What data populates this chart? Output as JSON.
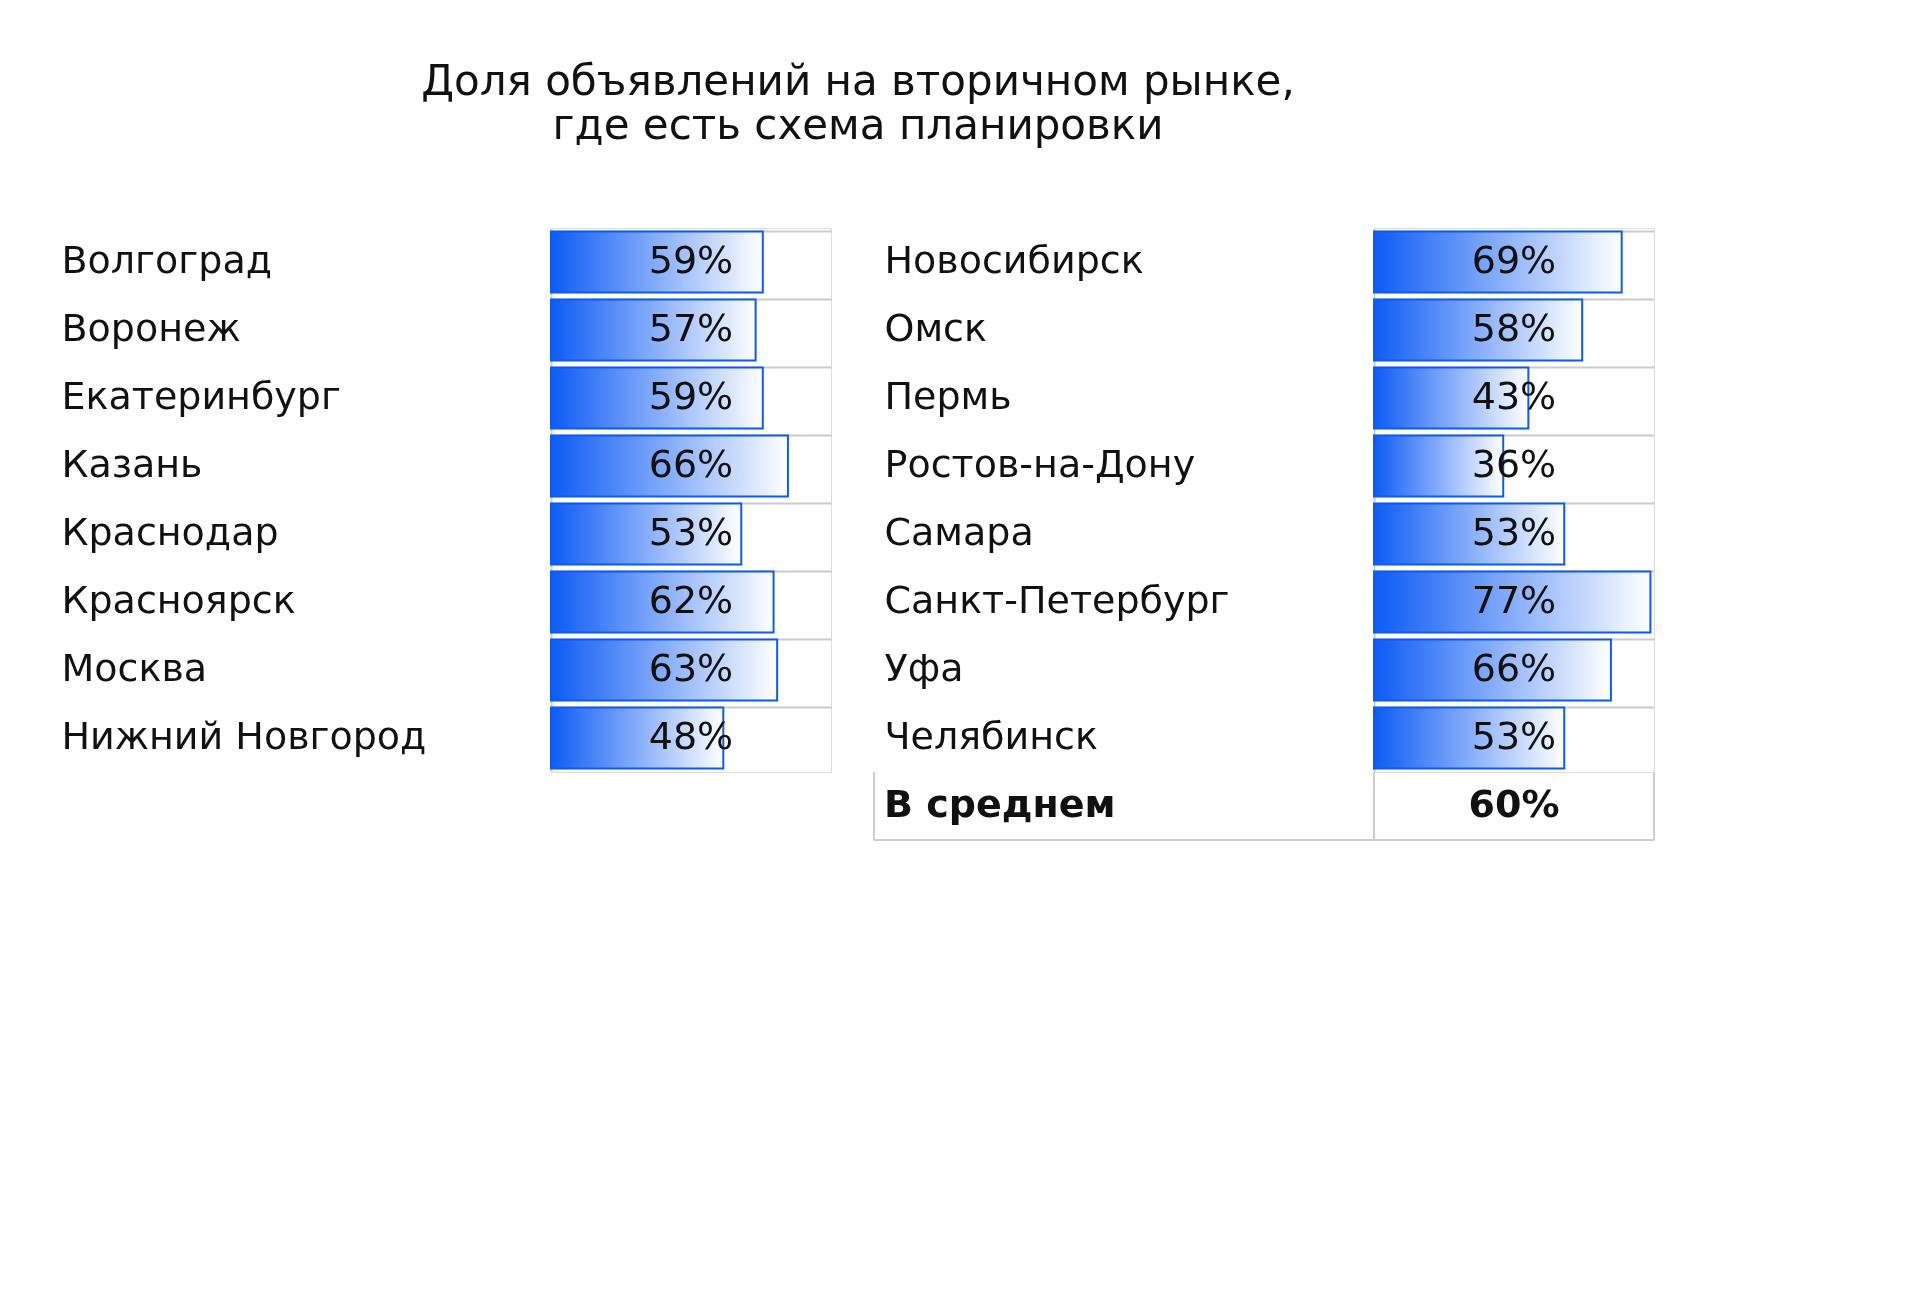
{
  "chart_data": [
    {
      "type": "bar",
      "orientation": "horizontal",
      "title": "Доля объявлений на вторичном рынке,\nгде есть схема планировки",
      "categories": [
        "Волгоград",
        "Воронеж",
        "Екатеринбург",
        "Казань",
        "Краснодар",
        "Красноярск",
        "Москва",
        "Нижний Новгород"
      ],
      "values": [
        59,
        57,
        59,
        66,
        53,
        62,
        63,
        48
      ],
      "value_labels": [
        "59%",
        "57%",
        "59%",
        "66%",
        "53%",
        "62%",
        "63%",
        "48%"
      ],
      "color": "#0d5bf5",
      "xlim": [
        0,
        78
      ],
      "tick_labels": "y",
      "grid": "y"
    },
    {
      "type": "bar",
      "orientation": "horizontal",
      "categories": [
        "Новосибирск",
        "Омск",
        "Пермь",
        "Ростов-на-Дону",
        "Самара",
        "Санкт-Петербург",
        "Уфа",
        "Челябинск"
      ],
      "values": [
        69,
        58,
        43,
        36,
        53,
        77,
        66,
        53
      ],
      "value_labels": [
        "69%",
        "58%",
        "43%",
        "36%",
        "53%",
        "77%",
        "66%",
        "53%"
      ],
      "color": "#0d5bf5",
      "xlim": [
        0,
        78
      ],
      "tick_labels": "y",
      "grid": "y",
      "annotations": [
        "В среднем",
        "60%"
      ]
    }
  ]
}
